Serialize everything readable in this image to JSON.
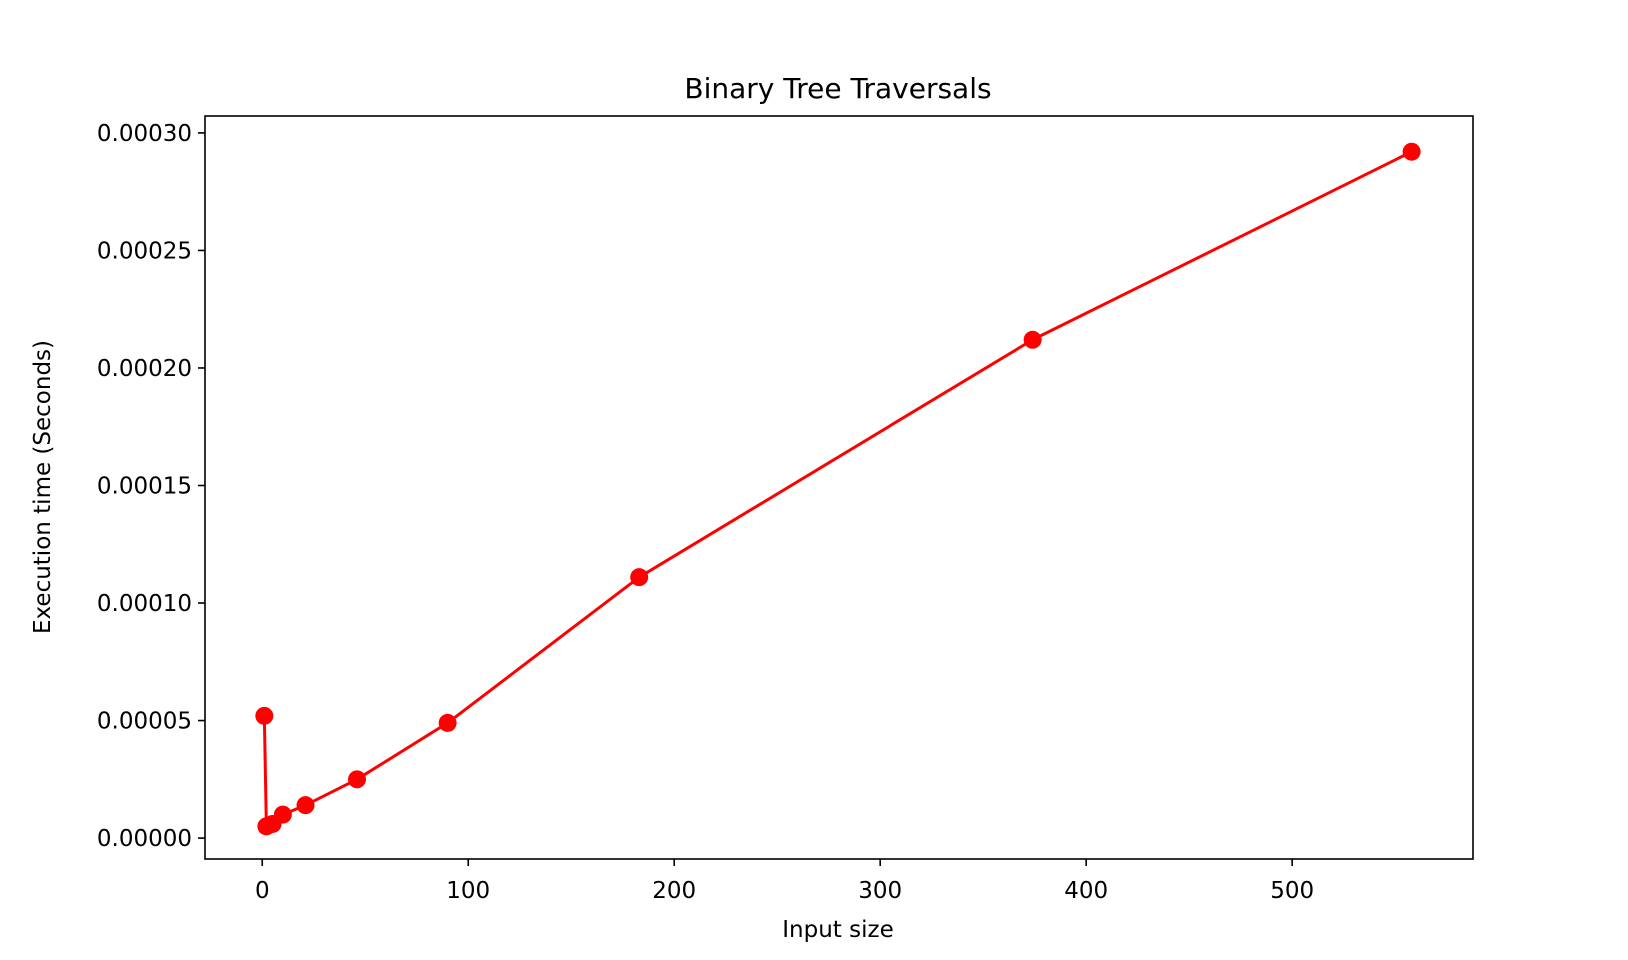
{
  "chart_data": {
    "type": "line",
    "title": "Binary Tree Traversals",
    "xlabel": "Input size",
    "ylabel": "Execution time (Seconds)",
    "xlim": [
      -27.8,
      587.8
    ],
    "ylim": [
      -8.9e-06,
      0.0003072
    ],
    "xticks": [
      {
        "value": 0,
        "label": "0"
      },
      {
        "value": 100,
        "label": "100"
      },
      {
        "value": 200,
        "label": "200"
      },
      {
        "value": 300,
        "label": "300"
      },
      {
        "value": 400,
        "label": "400"
      },
      {
        "value": 500,
        "label": "500"
      }
    ],
    "yticks": [
      {
        "value": 0,
        "label": "0.00000"
      },
      {
        "value": 5e-05,
        "label": "0.00005"
      },
      {
        "value": 0.0001,
        "label": "0.00010"
      },
      {
        "value": 0.00015,
        "label": "0.00015"
      },
      {
        "value": 0.0002,
        "label": "0.00020"
      },
      {
        "value": 0.00025,
        "label": "0.00025"
      },
      {
        "value": 0.0003,
        "label": "0.00030"
      }
    ],
    "grid": false,
    "series": [
      {
        "color": "#ff0000",
        "marker": "circle",
        "x": [
          1,
          2,
          5,
          10,
          21,
          46,
          90,
          183,
          374,
          558
        ],
        "y": [
          5.2e-05,
          5e-06,
          6e-06,
          1e-05,
          1.4e-05,
          2.5e-05,
          4.9e-05,
          0.000111,
          0.000212,
          0.000292
        ]
      }
    ]
  }
}
